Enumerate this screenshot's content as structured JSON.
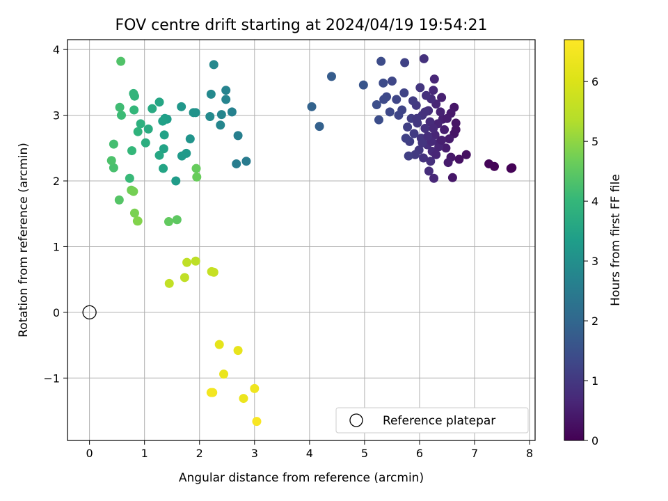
{
  "chart_data": {
    "type": "scatter",
    "title": "FOV centre drift starting at 2024/04/19 19:54:21",
    "xlabel": "Angular distance from reference (arcmin)",
    "ylabel": "Rotation from reference (arcmin)",
    "xlim": [
      -0.4,
      8.1
    ],
    "ylim": [
      -1.95,
      4.15
    ],
    "x_ticks": [
      "0",
      "1",
      "2",
      "3",
      "4",
      "5",
      "6",
      "7",
      "8"
    ],
    "y_ticks": [
      "−1",
      "0",
      "1",
      "2",
      "3",
      "4"
    ],
    "grid": true,
    "colormap": "viridis",
    "colorbar": {
      "label": "Hours from first FF file",
      "range": [
        0,
        6.7
      ],
      "ticks": [
        "0",
        "1",
        "2",
        "3",
        "4",
        "5",
        "6"
      ]
    },
    "legend": {
      "position": "lower-right",
      "entries": [
        {
          "label": "Reference platepar",
          "marker": "hollow-circle",
          "x": 0,
          "y": 0
        }
      ]
    },
    "series": [
      {
        "points": [
          [
            7.68,
            2.2,
            0.02
          ],
          [
            7.66,
            2.19,
            0.03
          ],
          [
            7.36,
            2.22,
            0.05
          ],
          [
            7.26,
            2.26,
            0.07
          ],
          [
            6.85,
            2.4,
            0.25
          ],
          [
            6.72,
            2.33,
            0.28
          ],
          [
            6.66,
            2.78,
            0.3
          ],
          [
            6.66,
            2.88,
            0.32
          ],
          [
            6.63,
            2.72,
            0.34
          ],
          [
            6.63,
            3.12,
            0.36
          ],
          [
            6.6,
            2.05,
            0.38
          ],
          [
            6.57,
            2.36,
            0.4
          ],
          [
            6.57,
            3.03,
            0.42
          ],
          [
            6.54,
            2.64,
            0.44
          ],
          [
            6.52,
            2.28,
            0.46
          ],
          [
            6.48,
            2.5,
            0.48
          ],
          [
            6.45,
            2.78,
            0.5
          ],
          [
            6.42,
            2.94,
            0.52
          ],
          [
            6.4,
            3.27,
            0.54
          ],
          [
            6.38,
            3.05,
            0.56
          ],
          [
            6.36,
            2.58,
            0.58
          ],
          [
            6.33,
            2.87,
            0.6
          ],
          [
            6.3,
            3.17,
            0.62
          ],
          [
            6.28,
            2.7,
            0.64
          ],
          [
            6.27,
            3.55,
            0.66
          ],
          [
            6.26,
            2.04,
            0.68
          ],
          [
            6.25,
            3.38,
            0.7
          ],
          [
            6.23,
            2.45,
            0.72
          ],
          [
            6.21,
            3.25,
            0.74
          ],
          [
            6.19,
            2.9,
            0.76
          ],
          [
            6.17,
            2.15,
            0.78
          ],
          [
            6.16,
            3.07,
            0.8
          ],
          [
            6.14,
            2.55,
            0.82
          ],
          [
            6.12,
            3.3,
            0.84
          ],
          [
            6.1,
            2.8,
            0.86
          ],
          [
            6.08,
            3.86,
            0.88
          ],
          [
            6.07,
            2.35,
            0.9
          ],
          [
            6.05,
            3.0,
            0.92
          ],
          [
            6.03,
            2.65,
            0.94
          ],
          [
            6.01,
            3.42,
            0.96
          ],
          [
            5.99,
            2.47,
            0.98
          ],
          [
            5.96,
            2.88,
            1.0
          ],
          [
            5.94,
            3.15,
            1.02
          ],
          [
            5.92,
            2.4,
            1.04
          ],
          [
            5.9,
            2.72,
            1.06
          ],
          [
            5.88,
            3.22,
            1.08
          ],
          [
            5.85,
            2.95,
            1.1
          ],
          [
            5.82,
            2.6,
            1.12
          ],
          [
            5.8,
            2.38,
            1.14
          ],
          [
            5.78,
            2.82,
            1.16
          ],
          [
            5.75,
            2.65,
            1.18
          ],
          [
            5.73,
            3.8,
            1.2
          ],
          [
            5.72,
            3.34,
            1.22
          ],
          [
            5.68,
            3.08,
            1.24
          ],
          [
            5.62,
            3.0,
            1.26
          ],
          [
            5.58,
            3.24,
            1.28
          ],
          [
            5.5,
            3.52,
            1.3
          ],
          [
            5.46,
            3.05,
            1.32
          ],
          [
            5.4,
            3.28,
            1.34
          ],
          [
            5.35,
            3.24,
            1.36
          ],
          [
            5.34,
            3.49,
            1.38
          ],
          [
            5.3,
            3.82,
            1.4
          ],
          [
            5.26,
            2.93,
            1.42
          ],
          [
            5.22,
            3.16,
            1.44
          ],
          [
            6.2,
            2.3,
            0.83
          ],
          [
            6.35,
            2.52,
            0.61
          ],
          [
            6.05,
            2.58,
            0.93
          ],
          [
            6.22,
            2.6,
            0.71
          ],
          [
            6.15,
            2.68,
            0.8
          ],
          [
            6.3,
            2.4,
            0.63
          ],
          [
            6.4,
            2.62,
            0.53
          ],
          [
            6.5,
            2.95,
            0.47
          ],
          [
            6.1,
            3.05,
            0.87
          ],
          [
            5.95,
            2.95,
            0.99
          ],
          [
            6.25,
            2.8,
            0.69
          ],
          [
            4.98,
            3.46,
            1.6
          ],
          [
            4.4,
            3.59,
            1.75
          ],
          [
            4.18,
            2.83,
            1.85
          ],
          [
            4.04,
            3.13,
            1.9
          ],
          [
            2.85,
            2.3,
            2.5
          ],
          [
            2.67,
            2.26,
            2.55
          ],
          [
            2.7,
            2.69,
            2.6
          ],
          [
            2.59,
            3.05,
            2.65
          ],
          [
            2.48,
            3.38,
            2.7
          ],
          [
            2.48,
            3.24,
            2.72
          ],
          [
            2.4,
            3.01,
            2.75
          ],
          [
            2.38,
            2.85,
            2.78
          ],
          [
            2.26,
            3.77,
            2.82
          ],
          [
            2.21,
            3.32,
            2.85
          ],
          [
            2.19,
            2.98,
            2.88
          ],
          [
            1.93,
            3.04,
            3.05
          ],
          [
            1.89,
            3.04,
            3.08
          ],
          [
            1.83,
            2.64,
            3.12
          ],
          [
            1.67,
            3.13,
            3.18
          ],
          [
            1.76,
            2.42,
            3.22
          ],
          [
            1.68,
            2.38,
            3.25
          ],
          [
            1.57,
            2.0,
            3.3
          ],
          [
            1.41,
            2.94,
            3.35
          ],
          [
            1.37,
            2.95,
            3.38
          ],
          [
            1.33,
            2.91,
            3.42
          ],
          [
            1.36,
            2.7,
            3.45
          ],
          [
            1.35,
            2.49,
            3.48
          ],
          [
            1.34,
            2.19,
            3.5
          ],
          [
            1.27,
            3.2,
            3.55
          ],
          [
            1.27,
            2.39,
            3.58
          ],
          [
            1.14,
            3.1,
            3.65
          ],
          [
            1.07,
            2.79,
            3.7
          ],
          [
            1.02,
            2.58,
            3.75
          ],
          [
            0.93,
            2.87,
            3.82
          ],
          [
            0.88,
            2.75,
            3.88
          ],
          [
            0.82,
            3.29,
            3.92
          ],
          [
            0.8,
            3.33,
            3.95
          ],
          [
            0.81,
            3.08,
            3.98
          ],
          [
            0.77,
            2.46,
            4.0
          ],
          [
            0.73,
            2.04,
            4.05
          ],
          [
            0.58,
            3.0,
            4.1
          ],
          [
            0.55,
            3.12,
            4.15
          ],
          [
            0.44,
            2.56,
            4.2
          ],
          [
            0.44,
            2.2,
            4.25
          ],
          [
            0.4,
            2.31,
            4.3
          ],
          [
            0.57,
            3.82,
            4.35
          ],
          [
            0.54,
            1.71,
            4.4
          ],
          [
            1.59,
            1.41,
            4.5
          ],
          [
            1.44,
            1.38,
            4.55
          ],
          [
            1.94,
            2.19,
            4.6
          ],
          [
            1.95,
            2.06,
            4.62
          ],
          [
            0.76,
            1.86,
            4.7
          ],
          [
            0.8,
            1.84,
            4.75
          ],
          [
            0.82,
            1.51,
            4.8
          ],
          [
            0.87,
            1.39,
            4.85
          ],
          [
            0.88,
            1.39,
            4.88
          ],
          [
            1.93,
            0.78,
            5.5
          ],
          [
            1.77,
            0.76,
            5.52
          ],
          [
            1.73,
            0.53,
            5.55
          ],
          [
            1.45,
            0.44,
            5.58
          ],
          [
            2.22,
            0.62,
            5.62
          ],
          [
            2.26,
            0.61,
            5.65
          ],
          [
            2.36,
            -0.49,
            6.2
          ],
          [
            2.7,
            -0.58,
            6.25
          ],
          [
            2.44,
            -0.94,
            6.3
          ],
          [
            2.8,
            -1.31,
            6.35
          ],
          [
            3.0,
            -1.16,
            6.4
          ],
          [
            2.24,
            -1.22,
            6.45
          ],
          [
            2.21,
            -1.22,
            6.5
          ],
          [
            3.04,
            -1.66,
            6.6
          ]
        ]
      }
    ]
  }
}
